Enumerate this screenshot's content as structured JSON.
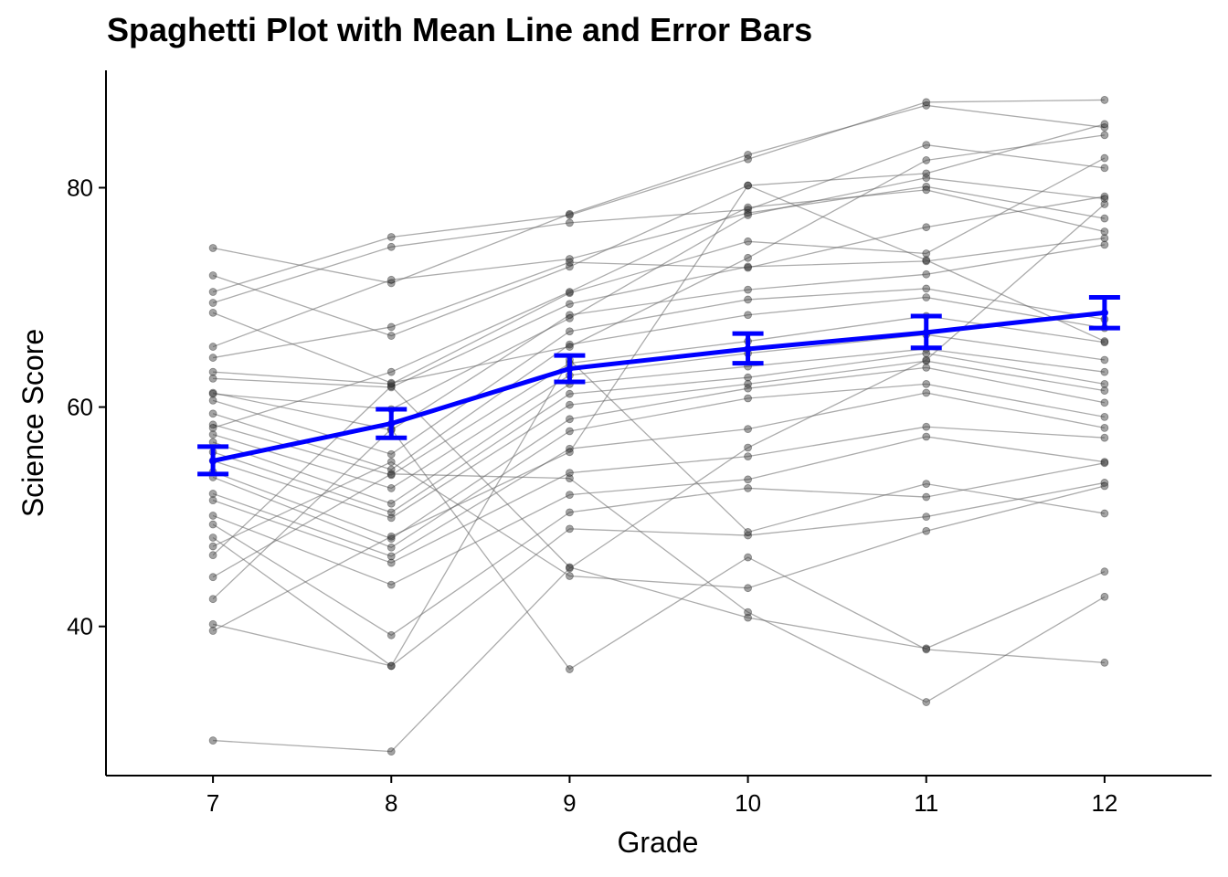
{
  "chart_data": {
    "type": "line",
    "title": "Spaghetti Plot with Mean Line and Error Bars",
    "xlabel": "Grade",
    "ylabel": "Science Score",
    "x": [
      7,
      8,
      9,
      10,
      11,
      12
    ],
    "xlim": [
      6.4,
      12.6
    ],
    "ylim": [
      26.4,
      90.7
    ],
    "y_ticks": [
      40,
      60,
      80
    ],
    "grid": false,
    "individual_color": "#666666",
    "mean_color": "#0000FF",
    "individuals": [
      [
        74.5,
        71.3,
        77.6,
        83.0,
        87.5,
        85.5
      ],
      [
        72.0,
        66.5,
        72.8,
        80.2,
        81.3,
        85.8
      ],
      [
        70.5,
        75.5,
        77.5,
        82.6,
        87.8,
        88.0
      ],
      [
        69.5,
        74.6,
        76.8,
        78.0,
        83.9,
        81.8
      ],
      [
        65.5,
        71.6,
        73.5,
        77.7,
        80.1,
        77.2
      ],
      [
        64.5,
        67.3,
        73.2,
        72.7,
        76.4,
        79.2
      ],
      [
        63.2,
        62.1,
        70.4,
        75.1,
        74.0,
        82.7
      ],
      [
        62.6,
        61.8,
        69.4,
        72.8,
        73.3,
        75.4
      ],
      [
        61.3,
        57.9,
        68.4,
        70.7,
        72.1,
        74.8
      ],
      [
        60.6,
        55.7,
        66.9,
        69.8,
        70.8,
        68.0
      ],
      [
        59.4,
        54.3,
        65.7,
        68.4,
        70.0,
        67.2
      ],
      [
        58.4,
        53.8,
        64.0,
        66.0,
        68.3,
        65.9
      ],
      [
        57.5,
        52.6,
        62.9,
        64.9,
        66.6,
        64.3
      ],
      [
        56.8,
        51.2,
        62.1,
        63.7,
        65.3,
        63.2
      ],
      [
        55.9,
        50.4,
        61.2,
        62.7,
        64.9,
        62.1
      ],
      [
        55.1,
        49.9,
        60.2,
        62.1,
        64.2,
        61.5
      ],
      [
        54.1,
        48.0,
        58.9,
        61.7,
        63.6,
        60.4
      ],
      [
        53.6,
        47.2,
        57.8,
        60.8,
        62.1,
        59.1
      ],
      [
        52.1,
        46.4,
        56.2,
        58.0,
        61.3,
        58.1
      ],
      [
        51.5,
        45.8,
        54.0,
        55.5,
        58.2,
        57.2
      ],
      [
        50.1,
        43.8,
        52.0,
        53.4,
        57.3,
        55.0
      ],
      [
        49.3,
        39.2,
        50.4,
        52.6,
        51.8,
        54.9
      ],
      [
        48.1,
        36.4,
        48.9,
        48.3,
        50.0,
        53.1
      ],
      [
        47.3,
        55.0,
        44.6,
        43.5,
        48.7,
        52.8
      ],
      [
        46.5,
        61.9,
        45.4,
        40.8,
        38.0,
        45.0
      ],
      [
        44.5,
        53.9,
        53.5,
        41.3,
        33.1,
        42.7
      ],
      [
        42.5,
        58.0,
        36.1,
        46.3,
        37.9,
        36.7
      ],
      [
        40.2,
        36.4,
        64.3,
        48.6,
        53.0,
        50.3
      ],
      [
        39.6,
        48.2,
        55.9,
        80.2,
        73.4,
        66.0
      ],
      [
        29.6,
        28.6,
        45.3,
        56.3,
        64.3,
        78.5
      ],
      [
        68.6,
        62.2,
        65.5,
        73.6,
        82.5,
        84.8
      ],
      [
        61.2,
        59.8,
        68.1,
        77.5,
        80.9,
        79.0
      ],
      [
        58.1,
        63.2,
        70.5,
        78.2,
        79.8,
        76.0
      ]
    ],
    "mean": {
      "values": [
        55.1,
        58.5,
        63.5,
        65.3,
        66.8,
        68.6
      ],
      "error_lower": [
        53.9,
        57.2,
        62.3,
        64.0,
        65.4,
        67.2
      ],
      "error_upper": [
        56.4,
        59.8,
        64.7,
        66.7,
        68.3,
        70.0
      ]
    }
  }
}
